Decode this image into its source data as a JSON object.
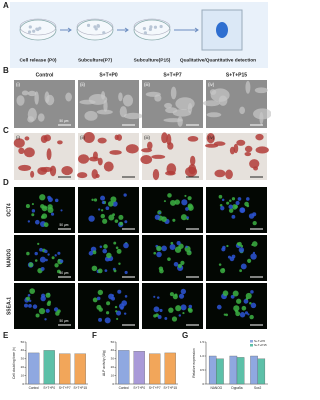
{
  "panel_labels": [
    "A",
    "B",
    "C",
    "D",
    "E",
    "F",
    "G"
  ],
  "workflow": {
    "steps": [
      "Cell release (P0)",
      "Subculture(P7)",
      "Subculture(P15)",
      "Qualitative/Quantitative detection"
    ]
  },
  "columns": [
    "Control",
    "S+T+P0",
    "S+T+P7",
    "S+T+P15"
  ],
  "image_tags": [
    "(i)",
    "(ii)",
    "(iii)",
    "(iv)"
  ],
  "markers": [
    "OCT4",
    "NANOG",
    "SSEA-1"
  ],
  "scale_bar": "50 μm",
  "charts": [
    {
      "type": "bar",
      "ylabel": "Cell doubling time (h)",
      "categories": [
        "Control",
        "S+T+P0",
        "S+T+P7",
        "S+T+P15"
      ],
      "values": [
        37,
        40,
        36,
        36
      ],
      "colors": [
        "#8fa8e0",
        "#5cc0a8",
        "#f2a65a",
        "#f2a65a"
      ],
      "ylim": [
        0,
        50
      ],
      "yticks": [
        0,
        10,
        20,
        30,
        40,
        50
      ]
    },
    {
      "type": "bar",
      "ylabel": "ALP activity (U/g)",
      "categories": [
        "Control",
        "S+T+P0",
        "S+T+P7",
        "S+T+P15"
      ],
      "values": [
        40,
        39,
        36,
        37
      ],
      "colors": [
        "#8fa8e0",
        "#a99ad8",
        "#f2a65a",
        "#f2a65a"
      ],
      "ylim": [
        0,
        50
      ],
      "yticks": [
        0,
        10,
        20,
        30,
        40,
        50
      ]
    },
    {
      "type": "grouped",
      "ylabel": "Relative expression",
      "categories": [
        "NANOG",
        "Dppa5a",
        "Sox2"
      ],
      "series": [
        {
          "name": "S+T+P0",
          "color": "#8fa8e0",
          "values": [
            1.0,
            1.0,
            1.0
          ]
        },
        {
          "name": "S+T+P15",
          "color": "#5cc0a8",
          "values": [
            0.9,
            0.95,
            0.9
          ]
        }
      ],
      "ylim": [
        0,
        1.5
      ],
      "yticks": [
        0,
        0.5,
        {
          "value": 1,
          "label": "1.0"
        },
        1.5
      ]
    }
  ]
}
